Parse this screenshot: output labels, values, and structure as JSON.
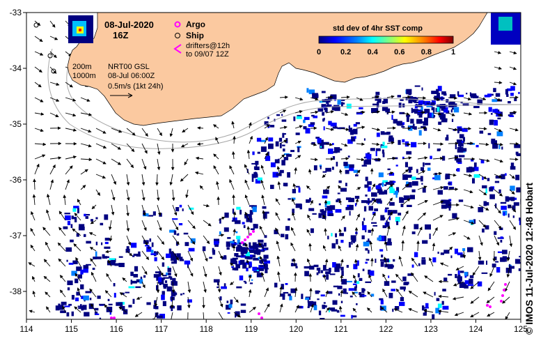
{
  "header": {
    "date": "08-Jul-2020",
    "time": "16Z"
  },
  "legend": {
    "argo_label": "Argo",
    "ship_label": "Ship",
    "drifters_line1": "drifters@12h",
    "drifters_line2": "to 09/07 12Z",
    "argo_color": "#ff00ff",
    "drifter_color": "#ff00ff"
  },
  "colorbar": {
    "title": "std dev of 4hr SST comp",
    "ticks": [
      "0",
      "0.2",
      "0.4",
      "0.6",
      "0.8",
      "1"
    ],
    "range": [
      0,
      1
    ],
    "colormap": [
      "#000080",
      "#0000ff",
      "#0080ff",
      "#00ffff",
      "#80ff80",
      "#ffff00",
      "#ff8000",
      "#ff0000",
      "#800000"
    ]
  },
  "info": {
    "contour1": "200m",
    "contour2": "1000m",
    "product": "NRT00 GSL",
    "analysis_time": "08-Jul 06:00Z",
    "scale_label": "0.5m/s (1kt 24h)"
  },
  "axes": {
    "x_ticks": [
      "114",
      "115",
      "116",
      "117",
      "118",
      "119",
      "120",
      "121",
      "122",
      "123",
      "124",
      "125"
    ],
    "y_ticks": [
      "-33",
      "-34",
      "-35",
      "-36",
      "-37",
      "-38"
    ],
    "lon_range": [
      114,
      125
    ],
    "lat_range": [
      -38.5,
      -33
    ]
  },
  "credit": "© IMOS 11-Jul-2020 12:48 Hobart",
  "colors": {
    "land": "#fbc9a0",
    "ocean": "#ffffff",
    "sst_dominant": "#000080",
    "contour": "#a0a0a0",
    "arrow": "#000000"
  }
}
